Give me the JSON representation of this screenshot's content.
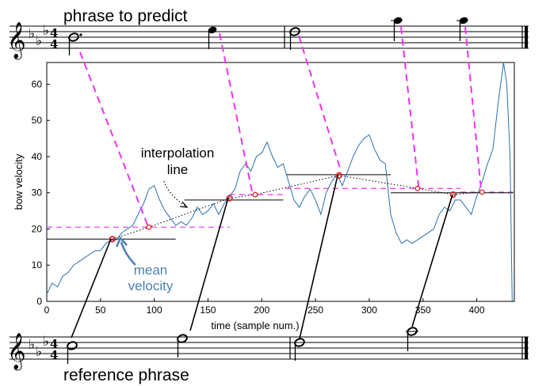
{
  "labels": {
    "phrase_to_predict": "phrase to predict",
    "reference_phrase": "reference phrase",
    "interpolation_line_1": "interpolation",
    "interpolation_line_2": "line",
    "mean_velocity_1": "mean",
    "mean_velocity_2": "velocity",
    "time_signature_top": "4",
    "time_signature_bottom": "4"
  },
  "chart_data": {
    "type": "line",
    "xlabel": "time (sample num.)",
    "ylabel": "bow velocity",
    "xlim": [
      0,
      435
    ],
    "ylim": [
      0,
      66
    ],
    "x_ticks": [
      0,
      50,
      100,
      150,
      200,
      250,
      300,
      350,
      400
    ],
    "y_ticks": [
      0,
      10,
      20,
      30,
      40,
      50,
      60
    ],
    "grid": false,
    "series": [
      {
        "color": "#2a6fb0",
        "x": [
          0,
          5,
          10,
          15,
          20,
          25,
          30,
          35,
          40,
          45,
          50,
          55,
          60,
          65,
          70,
          75,
          80,
          85,
          90,
          95,
          100,
          105,
          110,
          115,
          120,
          125,
          130,
          135,
          140,
          145,
          150,
          155,
          160,
          165,
          170,
          175,
          180,
          185,
          190,
          195,
          200,
          205,
          210,
          215,
          220,
          225,
          230,
          235,
          240,
          245,
          250,
          255,
          260,
          265,
          270,
          275,
          280,
          285,
          290,
          295,
          300,
          305,
          310,
          315,
          320,
          325,
          330,
          335,
          340,
          345,
          350,
          355,
          360,
          365,
          370,
          375,
          380,
          385,
          390,
          395,
          400,
          405,
          410,
          415,
          420,
          425,
          428,
          431,
          433
        ],
        "y": [
          2,
          5,
          4,
          7,
          8,
          10,
          11,
          12,
          13,
          14,
          14,
          16,
          17,
          17,
          19,
          20,
          21,
          24,
          27,
          31,
          32,
          28,
          25,
          23,
          21,
          22,
          21,
          23,
          26,
          24,
          25,
          27,
          24,
          27,
          29,
          31,
          36,
          38,
          36,
          40,
          41,
          44,
          40,
          37,
          38,
          33,
          28,
          26,
          29,
          31,
          28,
          24,
          30,
          33,
          35,
          32,
          36,
          40,
          43,
          45,
          46,
          42,
          39,
          38,
          24,
          19,
          16,
          17,
          16,
          17,
          18,
          19,
          20,
          24,
          26,
          25,
          28,
          28,
          26,
          24,
          29,
          33,
          38,
          42,
          55,
          67,
          60,
          40,
          0
        ]
      }
    ],
    "mean_velocity_segments": [
      {
        "x": [
          0,
          120
        ],
        "y": 17.2
      },
      {
        "x": [
          128,
          220
        ],
        "y": 28.0
      },
      {
        "x": [
          223,
          320
        ],
        "y": 35.0
      },
      {
        "x": [
          320,
          434
        ],
        "y": 30.0
      }
    ],
    "reference_points": [
      {
        "x": 61,
        "y": 17.2
      },
      {
        "x": 170,
        "y": 28.5
      },
      {
        "x": 272,
        "y": 34.8
      },
      {
        "x": 378,
        "y": 29.5
      }
    ],
    "predicted_points": [
      {
        "x": 95,
        "y": 20.5
      },
      {
        "x": 194,
        "y": 29.5
      },
      {
        "x": 345,
        "y": 31.2
      },
      {
        "x": 405,
        "y": 30.2
      }
    ],
    "predicted_levels": [
      {
        "x": [
          0,
          170
        ],
        "y": 20.5
      },
      {
        "x": [
          170,
          222
        ],
        "y": 29.5
      },
      {
        "x": [
          222,
          385
        ],
        "y": 31.2
      },
      {
        "x": [
          385,
          434
        ],
        "y": 30.2
      }
    ]
  },
  "colors": {
    "signal": "#2a6fb0",
    "magenta": "#ee33ee",
    "marker": "#dd2222",
    "mean_label": "#4a7fb5"
  }
}
